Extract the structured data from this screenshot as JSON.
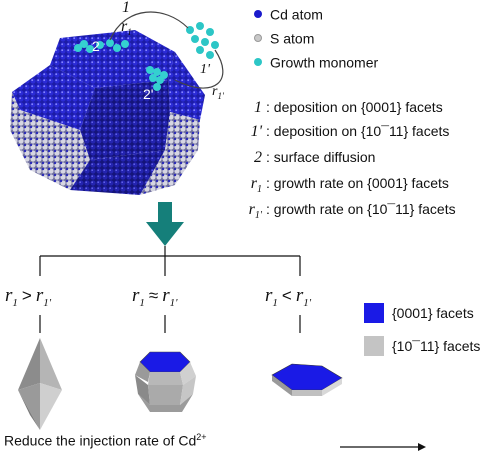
{
  "legend": {
    "cd_atom": "Cd atom",
    "s_atom": "S atom",
    "growth_monomer": "Growth monomer",
    "colors": {
      "cd": "#1a1acc",
      "s": "#c8c8c8",
      "monomer": "#2cc6c6"
    }
  },
  "processes": [
    {
      "key": "1",
      "key_sub": "",
      "text": "deposition on {0001} facets"
    },
    {
      "key": "1'",
      "key_sub": "",
      "text": "deposition on {10¯11} facets"
    },
    {
      "key": "2",
      "key_sub": "",
      "text": "surface diffusion"
    },
    {
      "key": "r",
      "key_sub": "1",
      "text": "growth rate on {0001} facets"
    },
    {
      "key": "r",
      "key_sub": "1'",
      "text": "growth rate on {10¯11} facets"
    }
  ],
  "crystal_labels": {
    "path1": "1",
    "r1": "r",
    "r1_sub": "1",
    "path1p": "1'",
    "r1p": "r",
    "r1p_sub": "1'",
    "diff2": "2",
    "diff2p": "2'"
  },
  "conditions": [
    {
      "left": "r",
      "left_sub": "1",
      "op": ">",
      "right": "r",
      "right_sub": "1'"
    },
    {
      "left": "r",
      "left_sub": "1",
      "op": "≈",
      "right": "r",
      "right_sub": "1'"
    },
    {
      "left": "r",
      "left_sub": "1",
      "op": "<",
      "right": "r",
      "right_sub": "1'"
    }
  ],
  "facet_legend": [
    {
      "label": "{0001} facets",
      "color": "#1a1ae6"
    },
    {
      "label": "{10¯11} facets",
      "color": "#c4c4c4"
    }
  ],
  "bottom": {
    "text": "Reduce the injection rate of Cd",
    "sup": "2+"
  },
  "colors": {
    "arrow": "#157f7a",
    "blue_facet": "#1a1ae6",
    "grey_facet": "#c4c4c4"
  }
}
